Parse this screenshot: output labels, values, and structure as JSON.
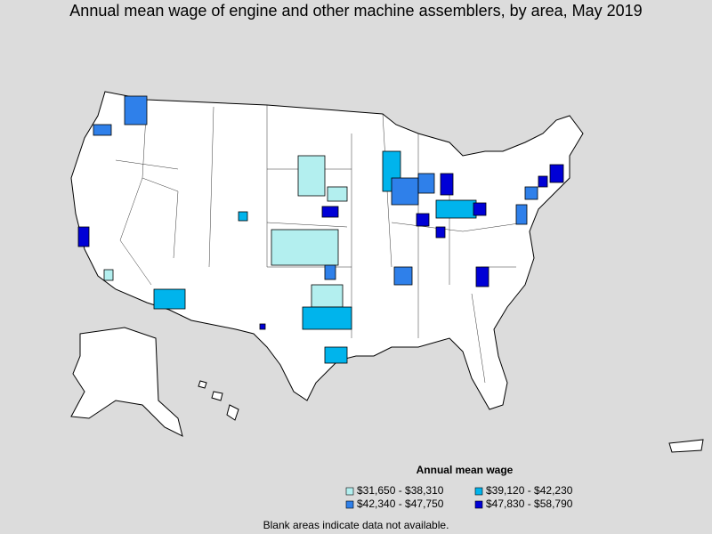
{
  "title": "Annual mean wage of engine and other machine assemblers, by area, May 2019",
  "legend": {
    "title": "Annual mean wage",
    "items": [
      {
        "label": "$31,650 - $38,310",
        "color": "#b3efef"
      },
      {
        "label": "$39,120 - $42,230",
        "color": "#00b4ec"
      },
      {
        "label": "$42,340 - $47,750",
        "color": "#2f80ea"
      },
      {
        "label": "$47,830 - $58,790",
        "color": "#0000d6"
      }
    ]
  },
  "note": "Blank areas indicate data not available."
}
